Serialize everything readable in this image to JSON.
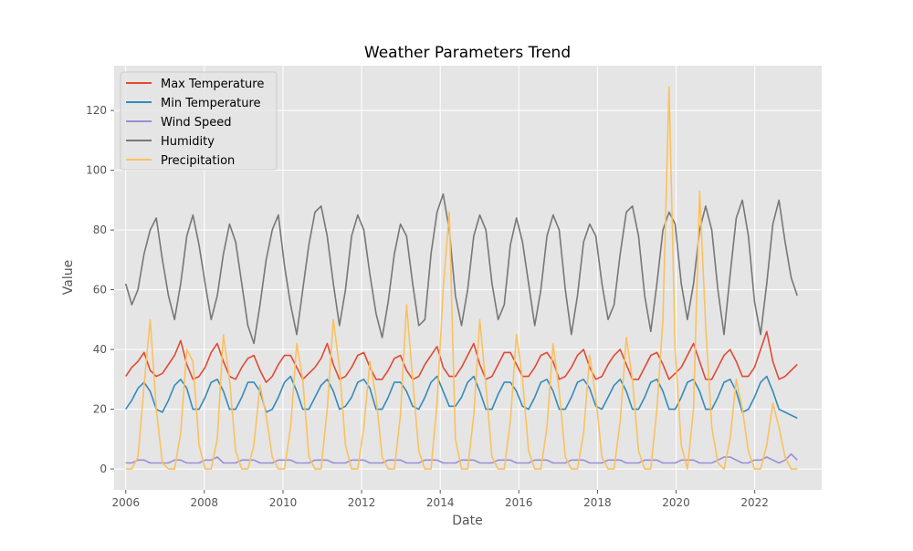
{
  "chart_data": {
    "type": "line",
    "title": "Weather Parameters Trend",
    "xlabel": "Date",
    "ylabel": "Value",
    "xlim": [
      "2005-09-15",
      "2023-09-15"
    ],
    "ylim": [
      -7,
      135
    ],
    "x_ticks": [
      "2006",
      "2008",
      "2010",
      "2012",
      "2014",
      "2016",
      "2018",
      "2020",
      "2022"
    ],
    "y_ticks": [
      0,
      20,
      40,
      60,
      80,
      100,
      120
    ],
    "grid": true,
    "legend_position": "top-left",
    "x_start": "2006-01-01",
    "x_end": "2023-01-31",
    "series": [
      {
        "name": "Max Temperature",
        "color": "#E24A33",
        "values": [
          31,
          34,
          36,
          39,
          33,
          31,
          32,
          35,
          38,
          43,
          35,
          30,
          31,
          34,
          39,
          42,
          36,
          31,
          30,
          34,
          37,
          38,
          33,
          29,
          31,
          35,
          38,
          38,
          34,
          30,
          32,
          34,
          37,
          42,
          35,
          30,
          31,
          34,
          38,
          39,
          34,
          30,
          30,
          33,
          37,
          38,
          33,
          30,
          31,
          35,
          38,
          41,
          34,
          31,
          31,
          34,
          38,
          42,
          35,
          30,
          31,
          35,
          39,
          39,
          35,
          31,
          31,
          34,
          38,
          39,
          36,
          30,
          31,
          34,
          38,
          40,
          34,
          30,
          31,
          35,
          38,
          40,
          35,
          30,
          30,
          34,
          38,
          39,
          35,
          30,
          32,
          34,
          38,
          42,
          36,
          30,
          30,
          34,
          38,
          40,
          36,
          31,
          31,
          34,
          40,
          46,
          36,
          30,
          31,
          33,
          35
        ]
      },
      {
        "name": "Min Temperature",
        "color": "#348ABD",
        "values": [
          20,
          23,
          27,
          29,
          26,
          20,
          19,
          23,
          28,
          30,
          27,
          20,
          20,
          24,
          29,
          30,
          26,
          20,
          20,
          24,
          29,
          29,
          26,
          19,
          20,
          24,
          29,
          31,
          26,
          20,
          20,
          24,
          28,
          30,
          26,
          20,
          21,
          24,
          29,
          30,
          27,
          20,
          20,
          24,
          29,
          29,
          26,
          21,
          20,
          24,
          29,
          31,
          26,
          21,
          21,
          24,
          29,
          31,
          26,
          20,
          20,
          25,
          29,
          29,
          26,
          21,
          20,
          24,
          29,
          30,
          26,
          20,
          20,
          24,
          29,
          30,
          27,
          21,
          20,
          24,
          28,
          30,
          26,
          20,
          20,
          24,
          29,
          30,
          26,
          20,
          20,
          24,
          29,
          30,
          26,
          20,
          20,
          24,
          29,
          30,
          26,
          19,
          20,
          24,
          29,
          31,
          26,
          20,
          19,
          18,
          17
        ]
      },
      {
        "name": "Wind Speed",
        "color": "#988ED5",
        "values": [
          2,
          2,
          3,
          3,
          2,
          2,
          2,
          2,
          3,
          3,
          2,
          2,
          2,
          3,
          3,
          4,
          2,
          2,
          2,
          3,
          3,
          3,
          2,
          2,
          2,
          3,
          3,
          3,
          2,
          2,
          2,
          3,
          3,
          3,
          2,
          2,
          2,
          3,
          3,
          3,
          2,
          2,
          2,
          3,
          3,
          3,
          2,
          2,
          2,
          3,
          3,
          3,
          2,
          2,
          2,
          3,
          3,
          3,
          2,
          2,
          2,
          3,
          3,
          3,
          2,
          2,
          2,
          3,
          3,
          3,
          2,
          2,
          2,
          3,
          3,
          3,
          2,
          2,
          2,
          3,
          3,
          3,
          2,
          2,
          2,
          3,
          3,
          3,
          2,
          2,
          2,
          3,
          3,
          3,
          2,
          2,
          2,
          3,
          4,
          4,
          3,
          2,
          2,
          3,
          3,
          4,
          3,
          2,
          3,
          5,
          3
        ]
      },
      {
        "name": "Humidity",
        "color": "#777777",
        "values": [
          62,
          55,
          60,
          72,
          80,
          84,
          70,
          58,
          50,
          62,
          78,
          85,
          75,
          62,
          50,
          58,
          72,
          82,
          76,
          62,
          48,
          42,
          55,
          70,
          80,
          85,
          68,
          55,
          45,
          60,
          75,
          86,
          88,
          78,
          62,
          48,
          60,
          78,
          85,
          80,
          65,
          52,
          44,
          56,
          72,
          82,
          78,
          62,
          48,
          50,
          72,
          86,
          92,
          80,
          58,
          48,
          60,
          78,
          85,
          80,
          62,
          50,
          55,
          75,
          84,
          76,
          62,
          48,
          60,
          78,
          85,
          80,
          60,
          45,
          58,
          76,
          82,
          78,
          62,
          50,
          55,
          72,
          86,
          88,
          78,
          58,
          46,
          62,
          80,
          86,
          82,
          62,
          50,
          62,
          80,
          88,
          80,
          60,
          45,
          65,
          84,
          90,
          78,
          56,
          45,
          62,
          82,
          90,
          76,
          64,
          58
        ]
      },
      {
        "name": "Precipitation",
        "color": "#FBC15E",
        "values": [
          0,
          0,
          4,
          28,
          50,
          20,
          2,
          0,
          0,
          12,
          40,
          36,
          8,
          0,
          0,
          10,
          45,
          30,
          6,
          0,
          0,
          8,
          28,
          18,
          4,
          0,
          0,
          14,
          42,
          30,
          4,
          0,
          0,
          20,
          50,
          34,
          8,
          0,
          0,
          14,
          36,
          24,
          4,
          0,
          0,
          18,
          55,
          30,
          6,
          0,
          0,
          22,
          60,
          86,
          10,
          0,
          0,
          18,
          50,
          28,
          4,
          0,
          0,
          16,
          45,
          30,
          6,
          0,
          0,
          14,
          42,
          26,
          4,
          0,
          0,
          12,
          38,
          24,
          4,
          0,
          0,
          16,
          44,
          30,
          6,
          0,
          0,
          20,
          50,
          128,
          40,
          8,
          0,
          20,
          93,
          48,
          14,
          2,
          0,
          10,
          30,
          20,
          6,
          0,
          0,
          8,
          22,
          14,
          4,
          0,
          0
        ]
      }
    ]
  }
}
